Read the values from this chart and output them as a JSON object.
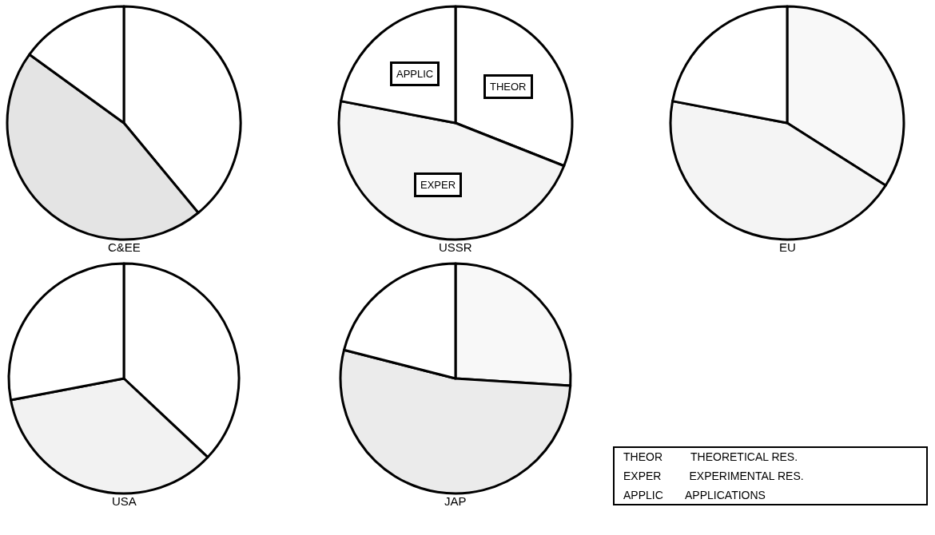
{
  "chart_data": {
    "type": "pie",
    "categories": [
      "THEOR",
      "EXPER",
      "APPLIC"
    ],
    "series": [
      {
        "name": "C&EE",
        "values": [
          39,
          46,
          15
        ],
        "colors": [
          "#ffffff",
          "#e4e4e4",
          "#ffffff"
        ]
      },
      {
        "name": "USSR",
        "values": [
          31,
          47,
          22
        ],
        "colors": [
          "#ffffff",
          "#f4f4f4",
          "#ffffff"
        ],
        "value_labels": [
          "THEOR",
          "EXPER",
          "APPLIC"
        ]
      },
      {
        "name": "EU",
        "values": [
          34,
          44,
          22
        ],
        "colors": [
          "#f8f8f8",
          "#f4f4f4",
          "#ffffff"
        ]
      },
      {
        "name": "USA",
        "values": [
          37,
          35,
          28
        ],
        "colors": [
          "#ffffff",
          "#f2f2f2",
          "#ffffff"
        ]
      },
      {
        "name": "JAP",
        "values": [
          26,
          53,
          21
        ],
        "colors": [
          "#f8f8f8",
          "#ebebeb",
          "#ffffff"
        ]
      }
    ],
    "annotations": [
      "THEORETICAL RES.",
      "EXPERIMENTAL RES.",
      "APPLICATIONS"
    ]
  }
}
